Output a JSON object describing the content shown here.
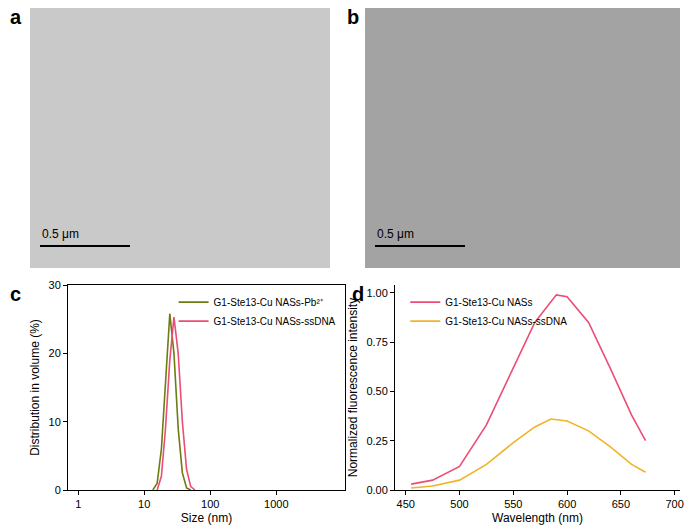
{
  "images": [
    {
      "panel": "a",
      "scale_bar": "0.5 μm",
      "color": "#c9c9c9"
    },
    {
      "panel": "b",
      "scale_bar": "0.5 μm",
      "color": "#a3a3a3"
    }
  ],
  "chart_data": [
    {
      "type": "line",
      "title": "c",
      "x_label": "Size (nm)",
      "y_label": "Distribution in volume (%)",
      "log": "x",
      "grid": false,
      "legend": "upper right",
      "xlim": [
        0.7,
        11000
      ],
      "xticks": [
        1,
        10,
        100,
        1000
      ],
      "ylim": [
        0,
        30
      ],
      "yticks": [
        0,
        10,
        20,
        30
      ],
      "series": [
        {
          "name": "G1-Ste13-Cu NASs-Pb²⁺",
          "color": "#6b7d12",
          "x": [
            13.5,
            15.7,
            18.2,
            21,
            24.4,
            28.2,
            32.7,
            37.8,
            43.8,
            50.7
          ],
          "values": [
            0,
            1,
            6,
            16,
            25.8,
            20,
            9,
            2.5,
            0.3,
            0
          ]
        },
        {
          "name": "G1-Ste13-Cu NASs-ssDNA",
          "color": "#ec4d76",
          "x": [
            15.7,
            18.2,
            21,
            24.4,
            28.2,
            32.7,
            37.8,
            43.8,
            50.7,
            58.8
          ],
          "values": [
            0,
            2,
            9,
            19,
            25.3,
            20,
            10,
            3,
            0.5,
            0
          ]
        }
      ]
    },
    {
      "type": "line",
      "title": "d",
      "x_label": "Wavelength (nm)",
      "y_label": "Normalized fluorescence intensity",
      "grid": false,
      "legend": "upper left",
      "xlim": [
        440,
        705
      ],
      "xticks": [
        450,
        500,
        550,
        600,
        650,
        700
      ],
      "ylim": [
        0,
        1.04
      ],
      "yticks": [
        {
          "value": 0,
          "label": "0.00"
        },
        {
          "value": 0.25,
          "label": "0.25"
        },
        {
          "value": 0.5,
          "label": "0.50"
        },
        {
          "value": 0.75,
          "label": "0.75"
        },
        {
          "value": 1,
          "label": "1.00"
        }
      ],
      "series": [
        {
          "name": "G1-Ste13-Cu NASs",
          "color": "#ec4d76",
          "x": [
            455,
            475,
            500,
            525,
            550,
            570,
            590,
            600,
            620,
            640,
            660,
            673
          ],
          "values": [
            0.03,
            0.05,
            0.12,
            0.33,
            0.62,
            0.85,
            0.99,
            0.98,
            0.85,
            0.62,
            0.38,
            0.25
          ]
        },
        {
          "name": "G1-Ste13-Cu NASs-ssDNA",
          "color": "#f0b429",
          "x": [
            455,
            475,
            500,
            525,
            550,
            570,
            585,
            600,
            620,
            640,
            660,
            673
          ],
          "values": [
            0.01,
            0.02,
            0.05,
            0.13,
            0.24,
            0.32,
            0.36,
            0.35,
            0.3,
            0.22,
            0.13,
            0.09
          ]
        }
      ]
    }
  ]
}
